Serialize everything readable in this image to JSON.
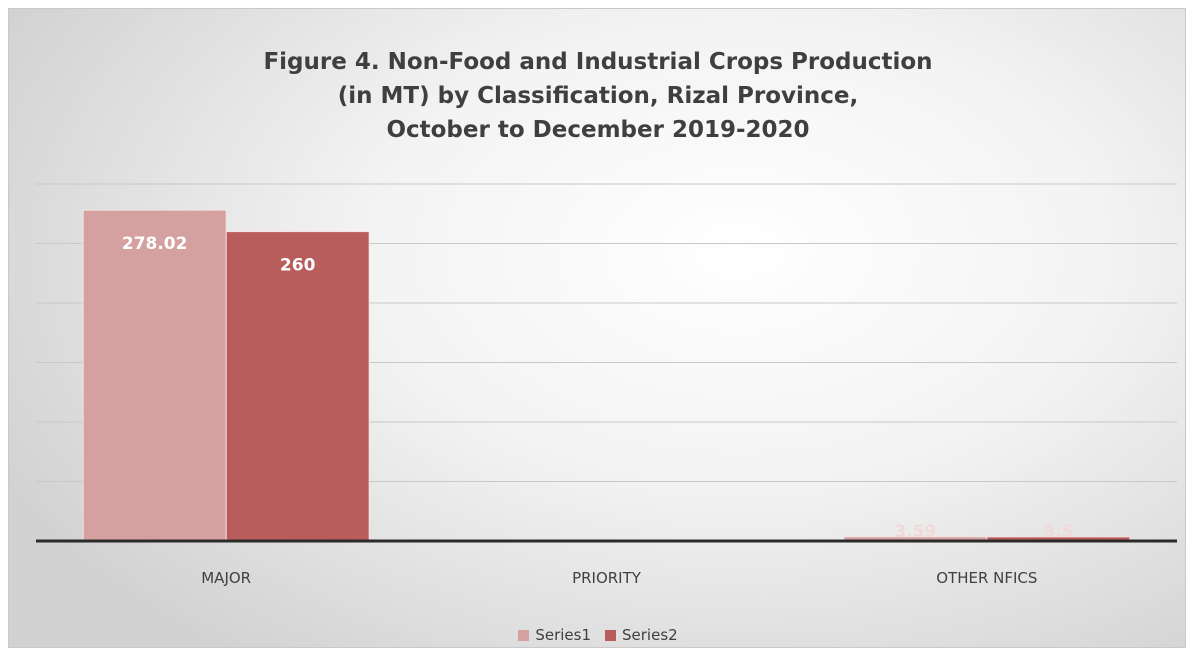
{
  "chart_data": {
    "type": "bar",
    "title_lines": [
      "Figure 4. Non-Food and Industrial Crops Production",
      "(in MT) by Classification, Rizal Province,",
      "October to December 2019-2020"
    ],
    "categories": [
      "MAJOR",
      "PRIORITY",
      "OTHER NFICS"
    ],
    "series": [
      {
        "name": "Series1",
        "values": [
          278.02,
          0,
          3.59
        ],
        "labels": [
          "278.02",
          "",
          "3.59"
        ],
        "color": "#d4a0a0"
      },
      {
        "name": "Series2",
        "values": [
          260,
          0,
          3.5
        ],
        "labels": [
          "260",
          "",
          "3.5"
        ],
        "color": "#b85c5c"
      }
    ],
    "ylim": [
      0,
      300
    ],
    "grid": true,
    "legend_position": "bottom"
  }
}
